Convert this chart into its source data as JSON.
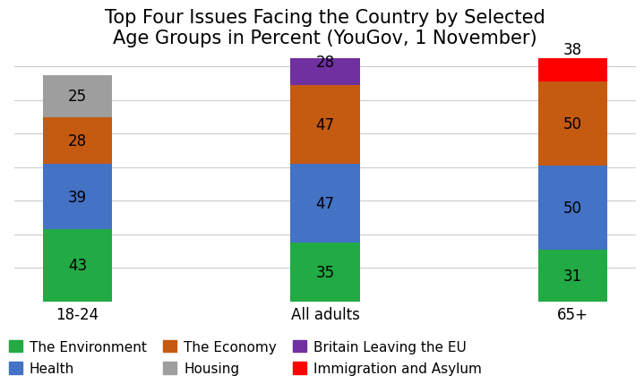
{
  "title": "Top Four Issues Facing the Country by Selected\nAge Groups in Percent (YouGov, 1 November)",
  "categories": [
    "18-24",
    "All adults",
    "65+"
  ],
  "segments": [
    {
      "label": "The Environment",
      "color": "#22aa44",
      "values": [
        43,
        35,
        31
      ]
    },
    {
      "label": "Health",
      "color": "#4472c4",
      "values": [
        39,
        47,
        50
      ]
    },
    {
      "label": "The Economy",
      "color": "#c55a11",
      "values": [
        28,
        47,
        50
      ]
    },
    {
      "label": "Housing",
      "color": "#9e9e9e",
      "values": [
        25,
        0,
        0
      ]
    },
    {
      "label": "Britain Leaving the EU",
      "color": "#7030a0",
      "values": [
        0,
        28,
        0
      ]
    },
    {
      "label": "Immigration and Asylum",
      "color": "#ff0000",
      "values": [
        0,
        0,
        38
      ]
    }
  ],
  "ylim": [
    0,
    145
  ],
  "yticks": [
    0,
    20,
    40,
    60,
    80,
    100,
    120,
    140
  ],
  "bar_width": 0.28,
  "background_color": "#ffffff",
  "grid_color": "#cccccc",
  "label_fontsize": 12,
  "title_fontsize": 15,
  "tick_fontsize": 12,
  "legend_fontsize": 11
}
